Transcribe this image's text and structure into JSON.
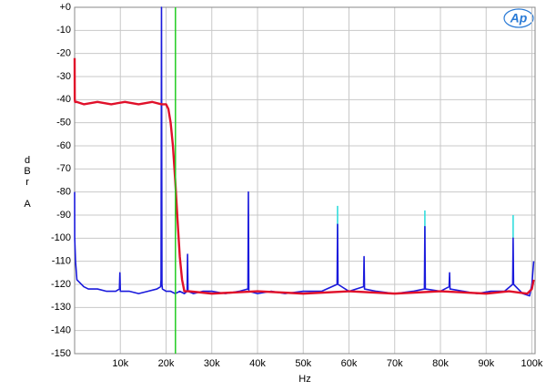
{
  "chart_data": {
    "type": "line",
    "y_label": "dBr A",
    "x_label": "Hz",
    "logo": "Ap",
    "xlim": [
      0,
      100700
    ],
    "ylim": [
      -150,
      0
    ],
    "xticks": [
      {
        "value": 10000,
        "label": "10k"
      },
      {
        "value": 20000,
        "label": "20k"
      },
      {
        "value": 30000,
        "label": "30k"
      },
      {
        "value": 40000,
        "label": "40k"
      },
      {
        "value": 50000,
        "label": "50k"
      },
      {
        "value": 60000,
        "label": "60k"
      },
      {
        "value": 70000,
        "label": "70k"
      },
      {
        "value": 80000,
        "label": "80k"
      },
      {
        "value": 90000,
        "label": "90k"
      },
      {
        "value": 100000,
        "label": "100k"
      }
    ],
    "yticks": [
      {
        "value": 0,
        "label": "+0"
      },
      -10,
      -20,
      -30,
      -40,
      -50,
      -60,
      -70,
      -80,
      -90,
      -100,
      -110,
      -120,
      -130,
      -140,
      -150
    ],
    "grid": true,
    "marker_x": 22050,
    "marker_color": "#22cc22",
    "series": [
      {
        "color": "#33dddd",
        "x": [
          57500,
          57500,
          57600,
          76600,
          76600,
          76700,
          95900,
          95900
        ],
        "values": [
          -100,
          -86,
          null,
          -100,
          -88,
          null,
          -100,
          -90
        ]
      },
      {
        "color": "#1a1adc",
        "x": [
          0,
          20,
          200,
          500,
          1000,
          2000,
          3000,
          5000,
          7000,
          9000,
          9800,
          9900,
          10000,
          12000,
          14000,
          16000,
          18000,
          18800,
          18900,
          19000,
          19100,
          19200,
          20000,
          21000,
          22000,
          23000,
          24000,
          24600,
          24700,
          24800,
          26000,
          28000,
          30000,
          33000,
          36000,
          37900,
          38000,
          38100,
          40000,
          43000,
          46000,
          50000,
          54000,
          57400,
          57500,
          57600,
          60000,
          63200,
          63300,
          63400,
          66000,
          70000,
          74000,
          76500,
          76600,
          76700,
          80000,
          81900,
          82000,
          82100,
          85000,
          88000,
          91000,
          94000,
          95800,
          95900,
          96000,
          98000,
          99500,
          100000,
          100400
        ],
        "values": [
          -80,
          -100,
          -110,
          -118,
          -119,
          -121,
          -122,
          -122,
          -123,
          -123,
          -122,
          -115,
          -123,
          -123,
          -124,
          -123,
          -122,
          -121,
          -118,
          0,
          -120,
          -122,
          -123,
          -123,
          -124,
          -123,
          -124,
          -123,
          -107,
          -123,
          -124,
          -123,
          -123,
          -124,
          -123,
          -122,
          -80,
          -123,
          -124,
          -123,
          -124,
          -123,
          -123,
          -120,
          -94,
          -120,
          -123,
          -121,
          -108,
          -122,
          -123,
          -124,
          -123,
          -122,
          -95,
          -122,
          -123,
          -121,
          -115,
          -122,
          -123,
          -124,
          -123,
          -123,
          -120,
          -100,
          -120,
          -124,
          -125,
          -120,
          -110
        ]
      },
      {
        "color": "#e0102a",
        "x": [
          0,
          30,
          100,
          500,
          2000,
          5000,
          8000,
          11000,
          14000,
          17000,
          19000,
          20000,
          20500,
          21000,
          21500,
          22000,
          22500,
          23000,
          23500,
          24000,
          25000,
          30000,
          40000,
          50000,
          60000,
          70000,
          80000,
          90000,
          95000,
          99000,
          100000,
          100400
        ],
        "values": [
          -22,
          -40,
          -41,
          -41,
          -42,
          -41,
          -42,
          -41,
          -42,
          -41,
          -42,
          -42,
          -44,
          -50,
          -60,
          -75,
          -92,
          -108,
          -118,
          -123,
          -123,
          -124,
          -123,
          -124,
          -123,
          -124,
          -123,
          -124,
          -123,
          -124,
          -122,
          -118
        ]
      }
    ]
  }
}
